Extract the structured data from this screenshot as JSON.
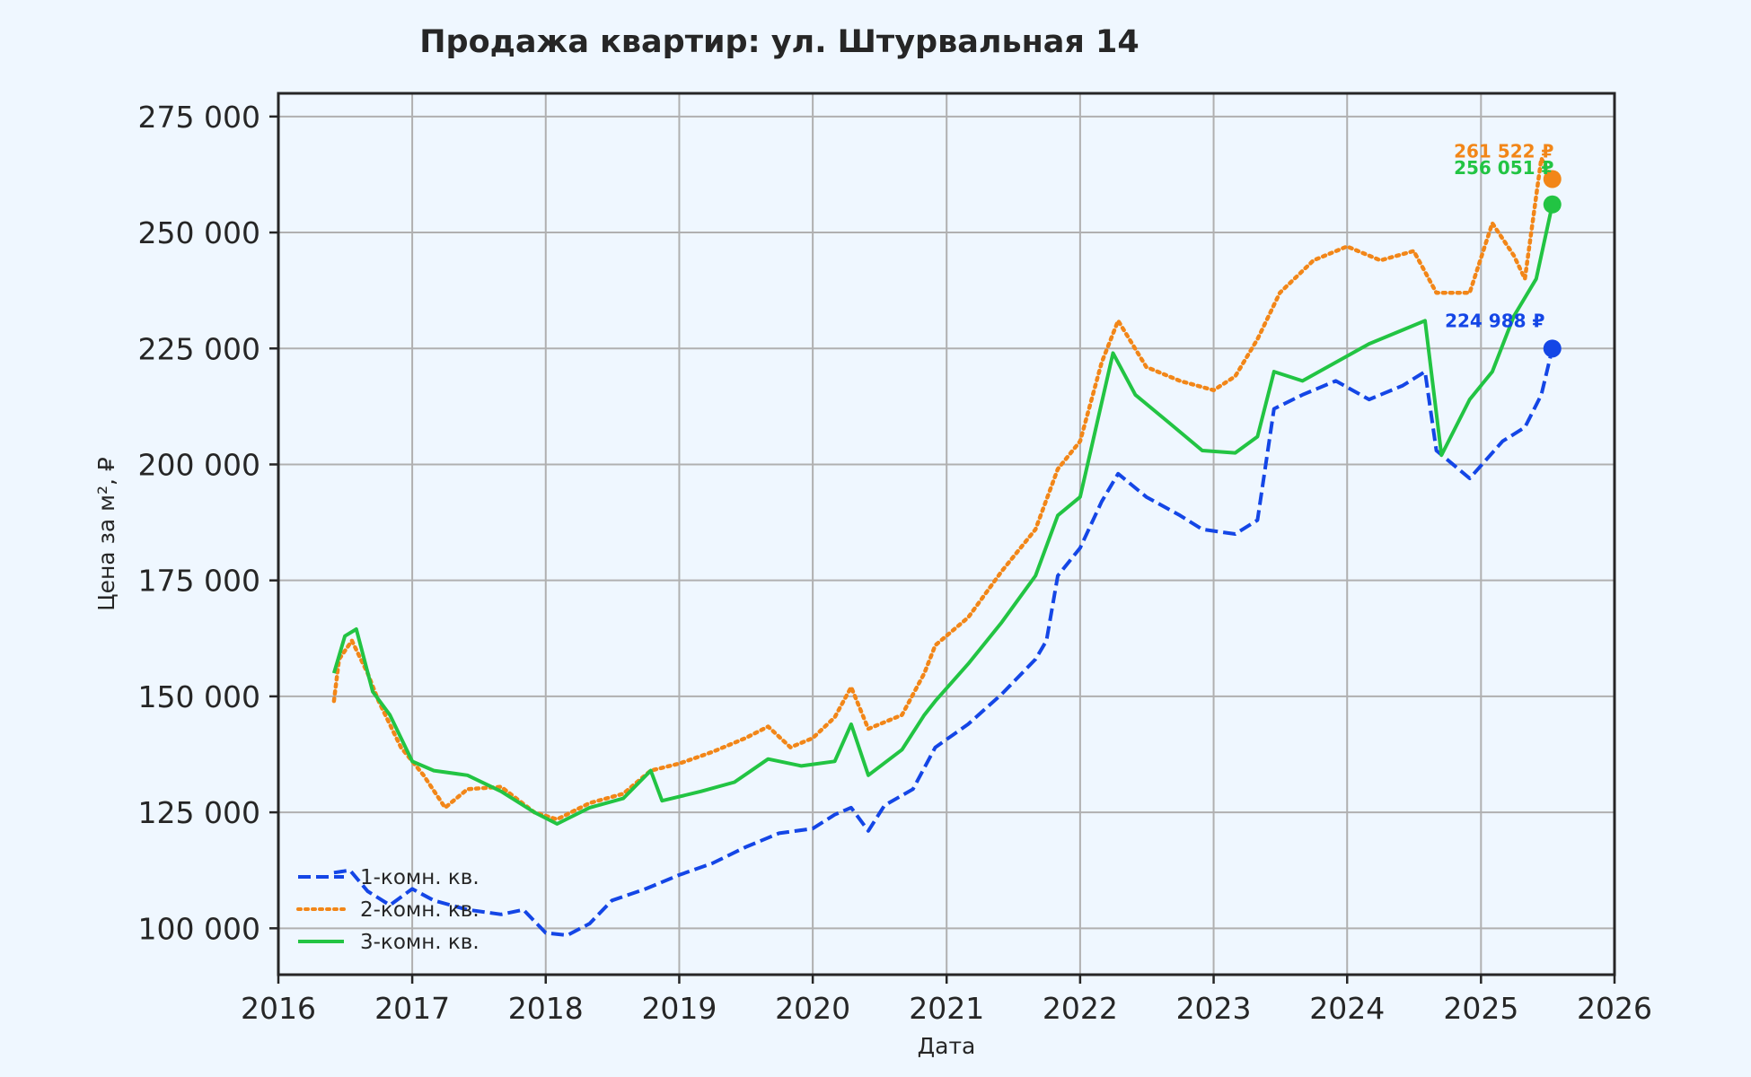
{
  "chart_data": {
    "type": "line",
    "title": "Продажа квартир: ул. Штурвальная 14",
    "xlabel": "Дата",
    "ylabel": "Цена за м², ₽",
    "xlim": [
      "2016-01-01",
      "2026-01-01"
    ],
    "ylim": [
      90000,
      280000
    ],
    "x_ticks": [
      "2016",
      "2017",
      "2018",
      "2019",
      "2020",
      "2021",
      "2022",
      "2023",
      "2024",
      "2025",
      "2026"
    ],
    "y_ticks": [
      100000,
      125000,
      150000,
      175000,
      200000,
      225000,
      250000,
      275000
    ],
    "y_tick_labels": [
      "100 000",
      "125 000",
      "150 000",
      "175 000",
      "200 000",
      "225 000",
      "250 000",
      "275 000"
    ],
    "grid": true,
    "legend_position": "lower-left",
    "series": [
      {
        "name": "1-комн. кв.",
        "color": "#1446e6",
        "style": "dashed",
        "end_label": "224 988 ₽",
        "end_value": 224988,
        "points": [
          [
            "2016-06-01",
            112000
          ],
          [
            "2016-07-15",
            112500
          ],
          [
            "2016-09-01",
            108000
          ],
          [
            "2016-11-01",
            105000
          ],
          [
            "2017-01-01",
            108500
          ],
          [
            "2017-03-01",
            106000
          ],
          [
            "2017-06-01",
            104000
          ],
          [
            "2017-09-01",
            103000
          ],
          [
            "2017-11-01",
            104000
          ],
          [
            "2018-01-01",
            99000
          ],
          [
            "2018-03-01",
            98500
          ],
          [
            "2018-05-01",
            101000
          ],
          [
            "2018-07-01",
            106000
          ],
          [
            "2018-10-01",
            108500
          ],
          [
            "2019-01-01",
            111500
          ],
          [
            "2019-04-01",
            114000
          ],
          [
            "2019-07-01",
            117500
          ],
          [
            "2019-10-01",
            120500
          ],
          [
            "2020-01-01",
            121500
          ],
          [
            "2020-03-01",
            124500
          ],
          [
            "2020-04-15",
            126000
          ],
          [
            "2020-06-01",
            121000
          ],
          [
            "2020-07-15",
            126500
          ],
          [
            "2020-10-01",
            130000
          ],
          [
            "2020-12-01",
            139000
          ],
          [
            "2021-03-01",
            144000
          ],
          [
            "2021-06-01",
            150500
          ],
          [
            "2021-09-01",
            158000
          ],
          [
            "2021-10-01",
            162000
          ],
          [
            "2021-11-01",
            176000
          ],
          [
            "2022-01-01",
            182000
          ],
          [
            "2022-03-01",
            192000
          ],
          [
            "2022-04-15",
            198000
          ],
          [
            "2022-07-01",
            193000
          ],
          [
            "2022-10-01",
            189000
          ],
          [
            "2022-12-01",
            186000
          ],
          [
            "2023-03-01",
            185000
          ],
          [
            "2023-05-01",
            188000
          ],
          [
            "2023-06-15",
            212000
          ],
          [
            "2023-09-01",
            215000
          ],
          [
            "2023-12-01",
            218000
          ],
          [
            "2024-03-01",
            214000
          ],
          [
            "2024-06-01",
            217000
          ],
          [
            "2024-08-01",
            220000
          ],
          [
            "2024-09-01",
            203000
          ],
          [
            "2024-12-01",
            197000
          ],
          [
            "2025-03-01",
            205000
          ],
          [
            "2025-05-01",
            208000
          ],
          [
            "2025-06-15",
            215000
          ],
          [
            "2025-07-15",
            224988
          ]
        ]
      },
      {
        "name": "2-комн. кв.",
        "color": "#f28618",
        "style": "dotted",
        "end_label": "261 522 ₽",
        "end_value": 261522,
        "points": [
          [
            "2016-06-01",
            149000
          ],
          [
            "2016-06-15",
            158000
          ],
          [
            "2016-07-20",
            162000
          ],
          [
            "2016-09-01",
            155000
          ],
          [
            "2016-10-01",
            149000
          ],
          [
            "2016-12-01",
            139000
          ],
          [
            "2017-02-01",
            133000
          ],
          [
            "2017-04-01",
            126000
          ],
          [
            "2017-06-01",
            130000
          ],
          [
            "2017-09-01",
            130500
          ],
          [
            "2017-12-01",
            125000
          ],
          [
            "2018-02-01",
            123500
          ],
          [
            "2018-05-01",
            127000
          ],
          [
            "2018-08-01",
            129000
          ],
          [
            "2018-10-15",
            134000
          ],
          [
            "2019-01-01",
            135500
          ],
          [
            "2019-04-01",
            138000
          ],
          [
            "2019-07-01",
            141000
          ],
          [
            "2019-09-01",
            143500
          ],
          [
            "2019-11-01",
            139000
          ],
          [
            "2020-01-01",
            141000
          ],
          [
            "2020-03-01",
            145500
          ],
          [
            "2020-04-15",
            152000
          ],
          [
            "2020-06-01",
            143000
          ],
          [
            "2020-09-01",
            146000
          ],
          [
            "2020-11-01",
            155000
          ],
          [
            "2020-12-01",
            161000
          ],
          [
            "2021-03-01",
            167000
          ],
          [
            "2021-06-01",
            177000
          ],
          [
            "2021-09-01",
            186000
          ],
          [
            "2021-11-01",
            199000
          ],
          [
            "2022-01-01",
            205000
          ],
          [
            "2022-03-01",
            222000
          ],
          [
            "2022-04-15",
            231000
          ],
          [
            "2022-07-01",
            221000
          ],
          [
            "2022-10-01",
            218000
          ],
          [
            "2023-01-01",
            216000
          ],
          [
            "2023-03-01",
            219000
          ],
          [
            "2023-05-01",
            227000
          ],
          [
            "2023-07-01",
            237000
          ],
          [
            "2023-10-01",
            244000
          ],
          [
            "2024-01-01",
            247000
          ],
          [
            "2024-04-01",
            244000
          ],
          [
            "2024-07-01",
            246000
          ],
          [
            "2024-09-01",
            237000
          ],
          [
            "2024-12-01",
            237000
          ],
          [
            "2025-02-01",
            252000
          ],
          [
            "2025-04-01",
            245000
          ],
          [
            "2025-05-01",
            240000
          ],
          [
            "2025-06-15",
            266000
          ],
          [
            "2025-07-15",
            261522
          ]
        ]
      },
      {
        "name": "3-комн. кв.",
        "color": "#22c443",
        "style": "solid",
        "end_label": "256 051 ₽",
        "end_value": 256051,
        "points": [
          [
            "2016-06-01",
            155000
          ],
          [
            "2016-07-01",
            163000
          ],
          [
            "2016-08-01",
            164500
          ],
          [
            "2016-09-15",
            151000
          ],
          [
            "2016-11-01",
            146000
          ],
          [
            "2017-01-01",
            136000
          ],
          [
            "2017-03-01",
            134000
          ],
          [
            "2017-06-01",
            133000
          ],
          [
            "2017-09-01",
            129500
          ],
          [
            "2017-12-01",
            125000
          ],
          [
            "2018-02-01",
            122500
          ],
          [
            "2018-05-01",
            126000
          ],
          [
            "2018-08-01",
            128000
          ],
          [
            "2018-10-15",
            134000
          ],
          [
            "2018-11-15",
            127500
          ],
          [
            "2019-03-01",
            129500
          ],
          [
            "2019-06-01",
            131500
          ],
          [
            "2019-09-01",
            136500
          ],
          [
            "2019-12-01",
            135000
          ],
          [
            "2020-03-01",
            136000
          ],
          [
            "2020-04-15",
            144000
          ],
          [
            "2020-06-01",
            133000
          ],
          [
            "2020-09-01",
            138500
          ],
          [
            "2020-11-01",
            146000
          ],
          [
            "2020-12-01",
            149000
          ],
          [
            "2021-03-01",
            157000
          ],
          [
            "2021-06-01",
            166000
          ],
          [
            "2021-09-01",
            176000
          ],
          [
            "2021-11-01",
            189000
          ],
          [
            "2022-01-01",
            193000
          ],
          [
            "2022-04-01",
            224000
          ],
          [
            "2022-06-01",
            215000
          ],
          [
            "2022-09-01",
            209000
          ],
          [
            "2022-12-01",
            203000
          ],
          [
            "2023-03-01",
            202500
          ],
          [
            "2023-05-01",
            206000
          ],
          [
            "2023-06-15",
            220000
          ],
          [
            "2023-09-01",
            218000
          ],
          [
            "2023-12-01",
            222000
          ],
          [
            "2024-03-01",
            226000
          ],
          [
            "2024-06-01",
            229000
          ],
          [
            "2024-08-01",
            231000
          ],
          [
            "2024-09-15",
            202000
          ],
          [
            "2024-12-01",
            214000
          ],
          [
            "2025-02-01",
            220000
          ],
          [
            "2025-04-01",
            232000
          ],
          [
            "2025-06-01",
            240000
          ],
          [
            "2025-07-15",
            256051
          ]
        ]
      }
    ]
  }
}
